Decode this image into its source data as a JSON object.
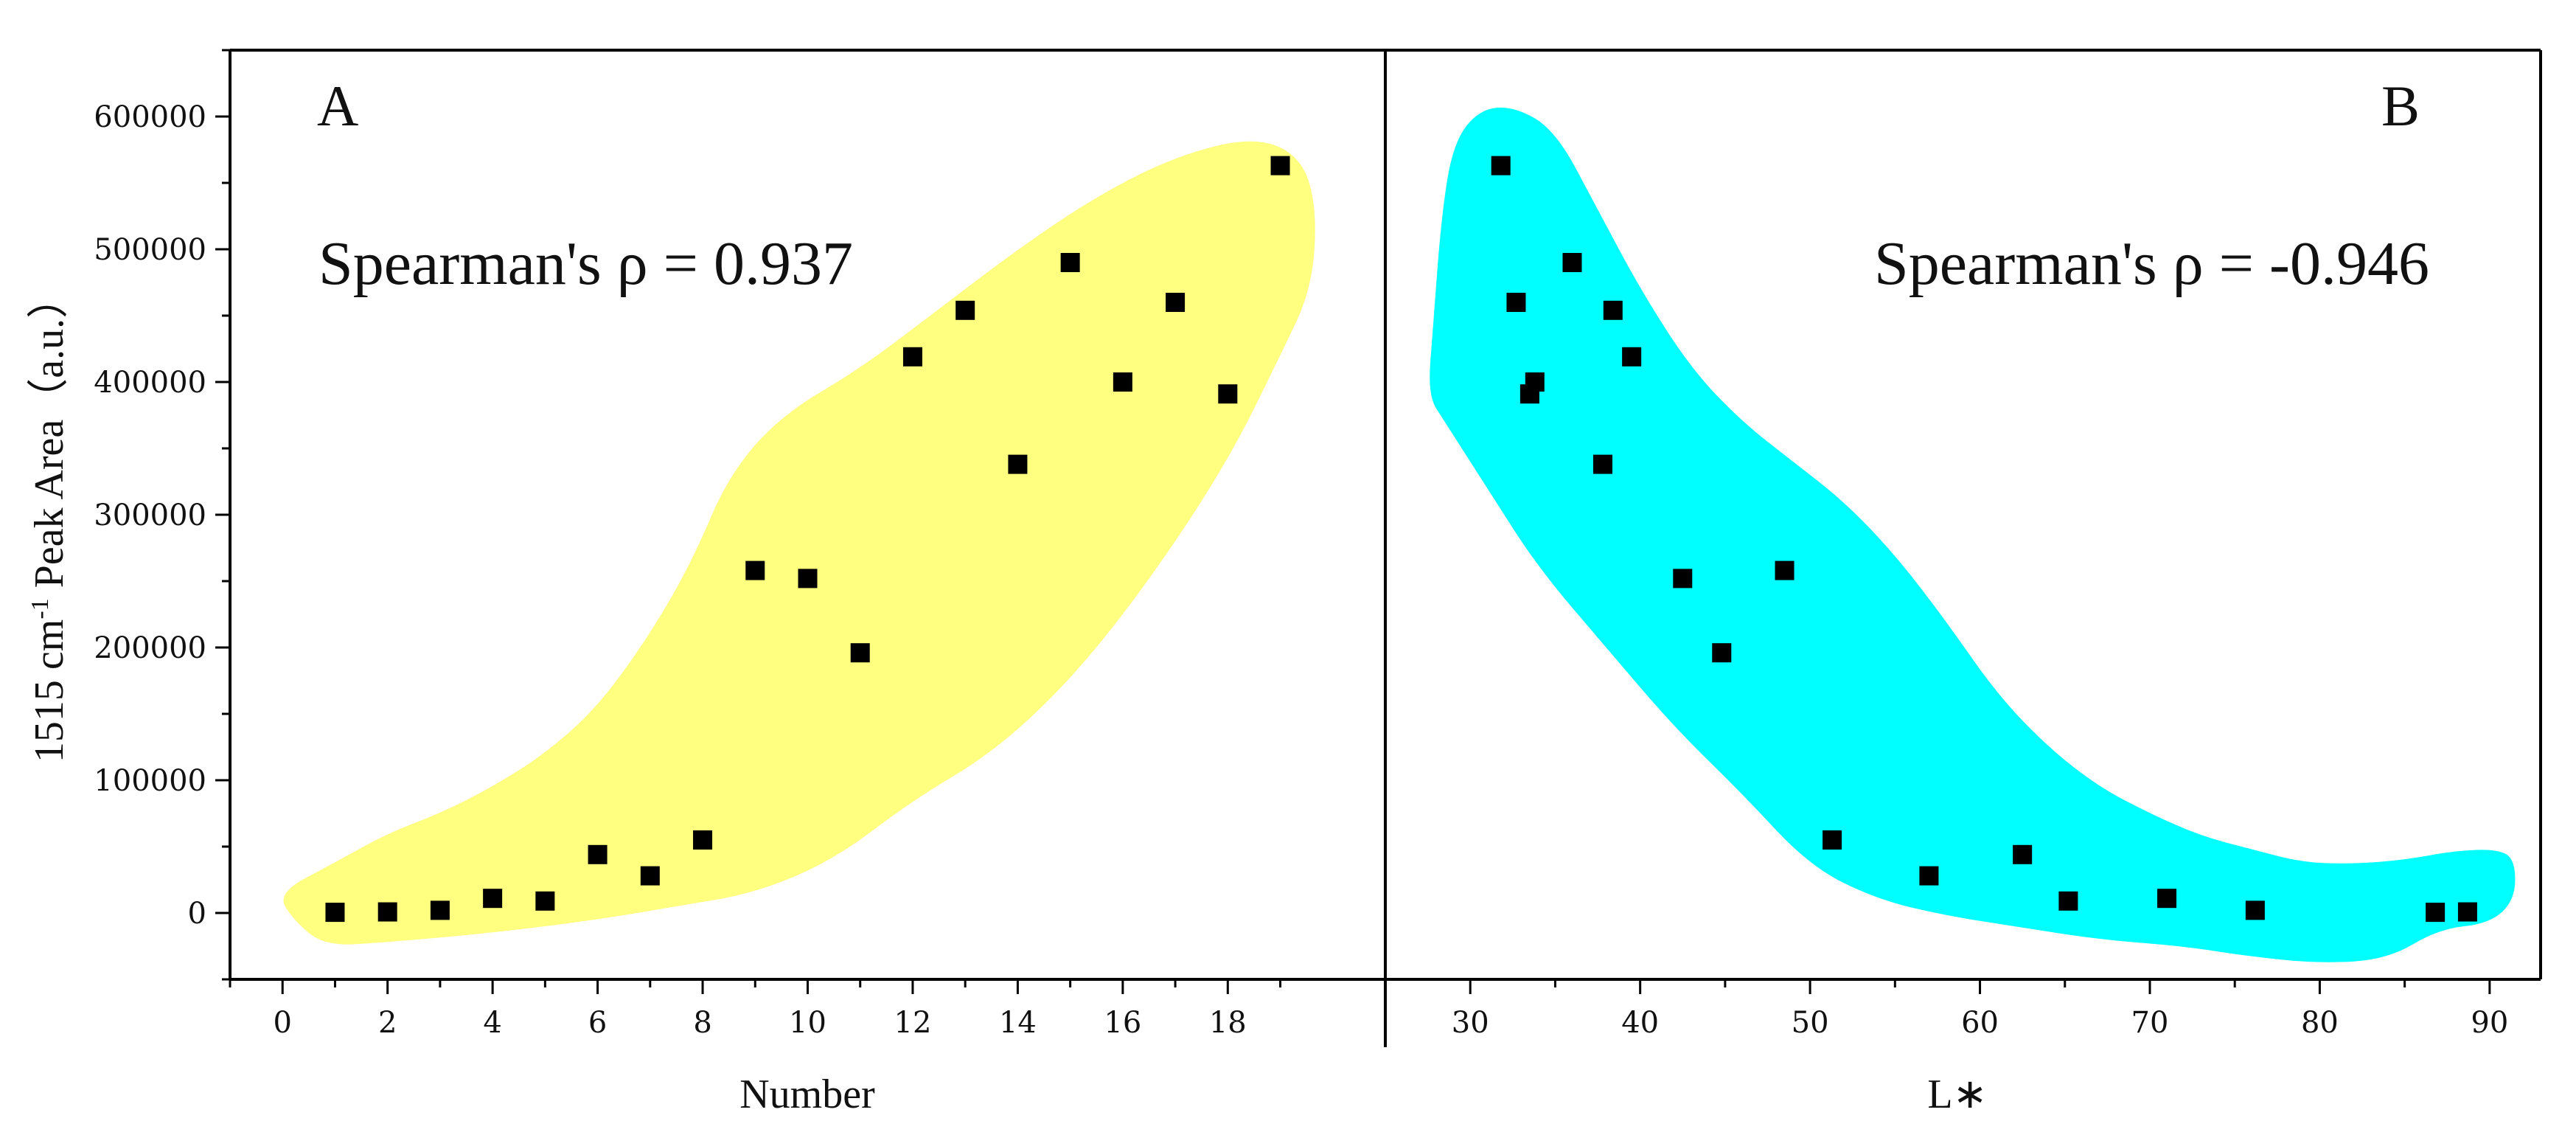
{
  "y_axis": {
    "label_main": "1515 cm",
    "label_sup": "-1",
    "label_rest": " Peak Area（a.u.）",
    "ylim": [
      -50000,
      650000
    ],
    "ticks": [
      0,
      100000,
      200000,
      300000,
      400000,
      500000,
      600000
    ],
    "tick_labels": [
      "0",
      "100000",
      "200000",
      "300000",
      "400000",
      "500000",
      "600000"
    ]
  },
  "chart_data": [
    {
      "type": "scatter",
      "panel": "A",
      "annotation": "Spearman's ρ = 0.937",
      "xlabel": "Number",
      "xlim": [
        -1,
        21
      ],
      "xticks": [
        0,
        2,
        4,
        6,
        8,
        10,
        12,
        14,
        16,
        18
      ],
      "tick_labels": [
        "0",
        "2",
        "4",
        "6",
        "8",
        "10",
        "12",
        "14",
        "16",
        "18"
      ],
      "region_color": "#ffff80",
      "marker_color": "#000000",
      "x": [
        1,
        2,
        3,
        4,
        5,
        6,
        7,
        8,
        9,
        10,
        11,
        12,
        13,
        14,
        15,
        16,
        17,
        18,
        19
      ],
      "y": [
        500,
        800,
        2000,
        11000,
        9000,
        44000,
        28000,
        55000,
        258000,
        252000,
        196000,
        419000,
        454000,
        338000,
        490000,
        400000,
        460000,
        391000,
        563000
      ],
      "region": [
        [
          -0.1,
          15000
        ],
        [
          1,
          38000
        ],
        [
          2,
          60000
        ],
        [
          3,
          75000
        ],
        [
          4,
          95000
        ],
        [
          5,
          120000
        ],
        [
          6,
          155000
        ],
        [
          7,
          210000
        ],
        [
          7.8,
          265000
        ],
        [
          8.5,
          330000
        ],
        [
          9.5,
          375000
        ],
        [
          11,
          410000
        ],
        [
          12.5,
          455000
        ],
        [
          14,
          500000
        ],
        [
          15.5,
          540000
        ],
        [
          17,
          570000
        ],
        [
          18.5,
          585000
        ],
        [
          19.4,
          570000
        ],
        [
          19.7,
          530000
        ],
        [
          19.6,
          470000
        ],
        [
          19,
          420000
        ],
        [
          18,
          340000
        ],
        [
          16.5,
          250000
        ],
        [
          15,
          175000
        ],
        [
          13.5,
          120000
        ],
        [
          12,
          85000
        ],
        [
          10.5,
          40000
        ],
        [
          9,
          15000
        ],
        [
          7.5,
          5000
        ],
        [
          6,
          -5000
        ],
        [
          4,
          -15000
        ],
        [
          2,
          -22000
        ],
        [
          0.8,
          -25000
        ],
        [
          0.2,
          -5000
        ]
      ]
    },
    {
      "type": "scatter",
      "panel": "B",
      "annotation": "Spearman's ρ = -0.946",
      "xlabel": "L∗",
      "xlim": [
        25,
        93
      ],
      "xticks": [
        30,
        40,
        50,
        60,
        70,
        80,
        90
      ],
      "tick_labels": [
        "30",
        "40",
        "50",
        "60",
        "70",
        "80",
        "90"
      ],
      "region_color": "#00ffff",
      "marker_color": "#000000",
      "x": [
        31.8,
        32.7,
        33.5,
        33.8,
        36.0,
        37.8,
        38.4,
        39.5,
        42.5,
        44.8,
        48.5,
        51.3,
        57.0,
        62.5,
        65.2,
        71.0,
        76.2,
        86.8,
        88.7
      ],
      "y": [
        563000,
        460000,
        391000,
        400000,
        490000,
        338000,
        454000,
        419000,
        252000,
        196000,
        258000,
        55000,
        28000,
        44000,
        9000,
        11000,
        2000,
        500,
        800
      ],
      "region": [
        [
          30.5,
          605000
        ],
        [
          32.5,
          608000
        ],
        [
          35,
          590000
        ],
        [
          37.5,
          530000
        ],
        [
          40,
          470000
        ],
        [
          43,
          410000
        ],
        [
          46,
          370000
        ],
        [
          49,
          340000
        ],
        [
          52,
          310000
        ],
        [
          55,
          270000
        ],
        [
          58,
          220000
        ],
        [
          61,
          165000
        ],
        [
          64,
          125000
        ],
        [
          67,
          95000
        ],
        [
          70,
          75000
        ],
        [
          73,
          58000
        ],
        [
          76,
          48000
        ],
        [
          79,
          38000
        ],
        [
          82,
          37000
        ],
        [
          85,
          40000
        ],
        [
          88,
          47000
        ],
        [
          90.5,
          48000
        ],
        [
          91.5,
          40000
        ],
        [
          91.5,
          10000
        ],
        [
          90,
          -8000
        ],
        [
          87,
          -12000
        ],
        [
          84,
          -35000
        ],
        [
          80,
          -38000
        ],
        [
          76,
          -33000
        ],
        [
          72,
          -25000
        ],
        [
          67,
          -20000
        ],
        [
          62,
          -10000
        ],
        [
          58,
          -2000
        ],
        [
          54,
          10000
        ],
        [
          50,
          35000
        ],
        [
          46,
          90000
        ],
        [
          42,
          140000
        ],
        [
          38,
          200000
        ],
        [
          34,
          260000
        ],
        [
          31,
          320000
        ],
        [
          28.5,
          370000
        ],
        [
          27.5,
          390000
        ],
        [
          27.8,
          440000
        ],
        [
          28.3,
          525000
        ],
        [
          29,
          580000
        ]
      ]
    }
  ]
}
